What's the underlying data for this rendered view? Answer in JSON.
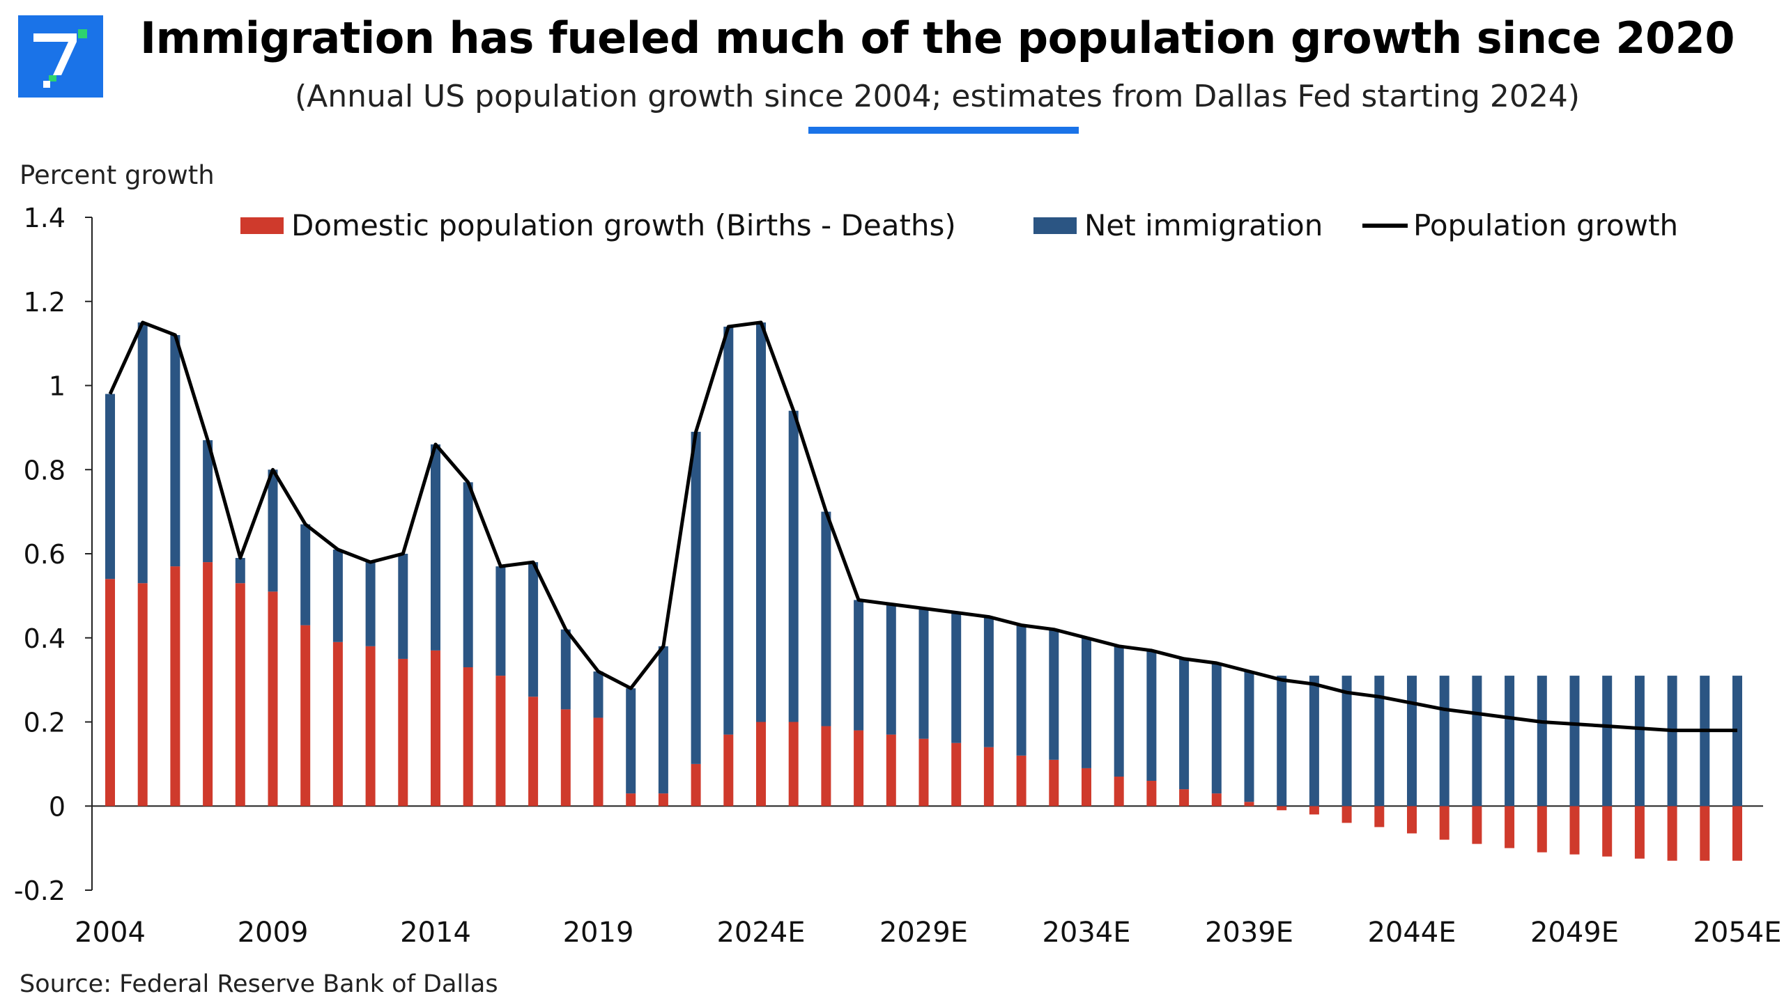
{
  "header": {
    "title": "Immigration has fueled much of the population growth since 2020",
    "subtitle": "(Annual US population growth since 2004; estimates from Dallas Fed starting 2024)"
  },
  "source": "Source: Federal Reserve Bank of Dallas",
  "colors": {
    "brand": "#1a73e8",
    "domestic": "#cf3a2c",
    "immigration": "#2b5583",
    "line": "#000000"
  },
  "chart_data": {
    "type": "bar",
    "stacked": true,
    "ylabel": "Percent growth",
    "ylim": [
      -0.2,
      1.4
    ],
    "yticks": [
      -0.2,
      0,
      0.2,
      0.4,
      0.6,
      0.8,
      1,
      1.2,
      1.4
    ],
    "ytick_labels": [
      "-0.2",
      "0",
      "0.2",
      "0.4",
      "0.6",
      "0.8",
      "1",
      "1.2",
      "1.4"
    ],
    "legend_position": "top",
    "grid": false,
    "x_tick_labels": [
      "2004",
      "2009",
      "2014",
      "2019",
      "2024E",
      "2029E",
      "2034E",
      "2039E",
      "2044E",
      "2049E",
      "2054E"
    ],
    "x_tick_indices": [
      0,
      5,
      10,
      15,
      20,
      25,
      30,
      35,
      40,
      45,
      50
    ],
    "categories": [
      "2004",
      "2005",
      "2006",
      "2007",
      "2008",
      "2009",
      "2010",
      "2011",
      "2012",
      "2013",
      "2014",
      "2015",
      "2016",
      "2017",
      "2018",
      "2019",
      "2020",
      "2021",
      "2022",
      "2023",
      "2024E",
      "2025E",
      "2026E",
      "2027E",
      "2028E",
      "2029E",
      "2030E",
      "2031E",
      "2032E",
      "2033E",
      "2034E",
      "2035E",
      "2036E",
      "2037E",
      "2038E",
      "2039E",
      "2040E",
      "2041E",
      "2042E",
      "2043E",
      "2044E",
      "2045E",
      "2046E",
      "2047E",
      "2048E",
      "2049E",
      "2050E",
      "2051E",
      "2052E",
      "2053E",
      "2054E"
    ],
    "series": [
      {
        "name": "Domestic population growth (Births - Deaths)",
        "type": "bar",
        "values": [
          0.54,
          0.53,
          0.57,
          0.58,
          0.53,
          0.51,
          0.43,
          0.39,
          0.38,
          0.35,
          0.37,
          0.33,
          0.31,
          0.26,
          0.23,
          0.21,
          0.03,
          0.03,
          0.1,
          0.17,
          0.2,
          0.2,
          0.19,
          0.18,
          0.17,
          0.16,
          0.15,
          0.14,
          0.12,
          0.11,
          0.09,
          0.07,
          0.06,
          0.04,
          0.03,
          0.01,
          -0.01,
          -0.02,
          -0.04,
          -0.05,
          -0.065,
          -0.08,
          -0.09,
          -0.1,
          -0.11,
          -0.115,
          -0.12,
          -0.125,
          -0.13,
          -0.13,
          -0.13
        ]
      },
      {
        "name": "Net immigration",
        "type": "bar",
        "values": [
          0.44,
          0.62,
          0.55,
          0.29,
          0.06,
          0.29,
          0.24,
          0.22,
          0.2,
          0.25,
          0.49,
          0.44,
          0.26,
          0.32,
          0.19,
          0.11,
          0.25,
          0.35,
          0.79,
          0.97,
          0.95,
          0.74,
          0.51,
          0.31,
          0.31,
          0.31,
          0.31,
          0.31,
          0.31,
          0.31,
          0.31,
          0.31,
          0.31,
          0.31,
          0.31,
          0.31,
          0.31,
          0.31,
          0.31,
          0.31,
          0.31,
          0.31,
          0.31,
          0.31,
          0.31,
          0.31,
          0.31,
          0.31,
          0.31,
          0.31,
          0.31
        ]
      },
      {
        "name": "Population growth",
        "type": "line",
        "values": [
          0.98,
          1.15,
          1.12,
          0.87,
          0.59,
          0.8,
          0.67,
          0.61,
          0.58,
          0.6,
          0.86,
          0.77,
          0.57,
          0.58,
          0.42,
          0.32,
          0.28,
          0.38,
          0.89,
          1.14,
          1.15,
          0.94,
          0.7,
          0.49,
          0.48,
          0.47,
          0.46,
          0.45,
          0.43,
          0.42,
          0.4,
          0.38,
          0.37,
          0.35,
          0.34,
          0.32,
          0.3,
          0.29,
          0.27,
          0.26,
          0.245,
          0.23,
          0.22,
          0.21,
          0.2,
          0.195,
          0.19,
          0.185,
          0.18,
          0.18,
          0.18
        ]
      }
    ]
  }
}
